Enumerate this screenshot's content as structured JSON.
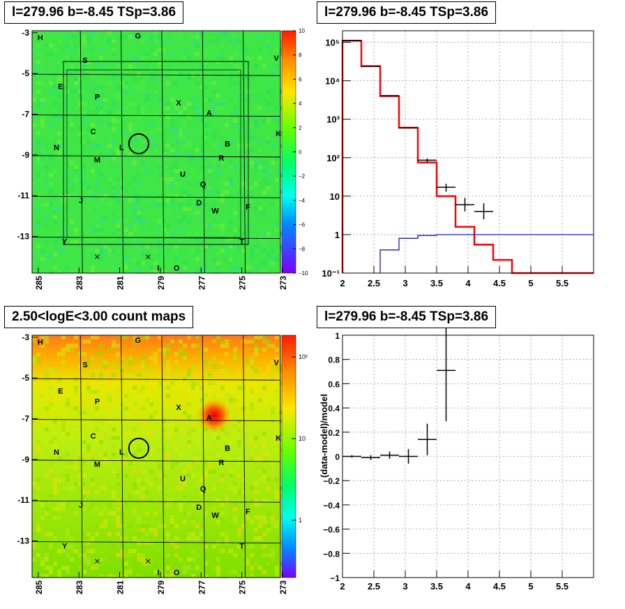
{
  "panels": {
    "tl_title": "l=279.96 b=-8.45 TSp=3.86",
    "tr_title": "l=279.96 b=-8.45 TSp=3.86",
    "bl_title": "2.50<logE<3.00 count maps",
    "br_title": "l=279.96 b=-8.45 TSp=3.86"
  },
  "sky_map": {
    "x_ticks": [
      "285",
      "283",
      "281",
      "279",
      "277",
      "275",
      "273"
    ],
    "y_ticks": [
      "-3",
      "-5",
      "-7",
      "-9",
      "-11",
      "-13"
    ],
    "labels": [
      {
        "t": "H",
        "l": 284.8,
        "b": -3.2
      },
      {
        "t": "G",
        "l": 280.0,
        "b": -3.1
      },
      {
        "t": "S",
        "l": 282.6,
        "b": -4.3
      },
      {
        "t": "V",
        "l": 273.2,
        "b": -4.2
      },
      {
        "t": "E",
        "l": 283.8,
        "b": -5.6
      },
      {
        "t": "P",
        "l": 282.0,
        "b": -6.1
      },
      {
        "t": "X",
        "l": 278.0,
        "b": -6.4
      },
      {
        "t": "A",
        "l": 276.5,
        "b": -6.9
      },
      {
        "t": "C",
        "l": 282.2,
        "b": -7.8
      },
      {
        "t": "K",
        "l": 273.1,
        "b": -7.9
      },
      {
        "t": "B",
        "l": 275.6,
        "b": -8.4
      },
      {
        "t": "N",
        "l": 284.0,
        "b": -8.6
      },
      {
        "t": "L",
        "l": 280.8,
        "b": -8.6
      },
      {
        "t": "R",
        "l": 275.9,
        "b": -9.1
      },
      {
        "t": "M",
        "l": 282.0,
        "b": -9.2
      },
      {
        "t": "U",
        "l": 277.8,
        "b": -9.9
      },
      {
        "t": "Q",
        "l": 276.8,
        "b": -10.4
      },
      {
        "t": "J",
        "l": 282.8,
        "b": -11.2
      },
      {
        "t": "D",
        "l": 277.0,
        "b": -11.3
      },
      {
        "t": "W",
        "l": 276.2,
        "b": -11.7
      },
      {
        "t": "F",
        "l": 274.6,
        "b": -11.5
      },
      {
        "t": "Y",
        "l": 283.6,
        "b": -13.2
      },
      {
        "t": "T",
        "l": 274.9,
        "b": -13.2
      },
      {
        "t": "I",
        "l": 279.0,
        "b": -14.5
      },
      {
        "t": "O",
        "l": 278.1,
        "b": -14.5
      }
    ],
    "crosses": [
      {
        "l": 282.0,
        "b": -14.0
      },
      {
        "l": 279.5,
        "b": -14.0
      }
    ],
    "roi_circle": {
      "l": 279.96,
      "b": -8.45,
      "r_deg": 0.45
    }
  },
  "tl_colorbar": {
    "ticks": [
      "10",
      "8",
      "6",
      "4",
      "2",
      "0",
      "−2",
      "−4",
      "−6",
      "−8",
      "−10"
    ]
  },
  "bl_colorbar": {
    "ticks": [
      "10²",
      "10",
      "1"
    ]
  },
  "chart_data": [
    {
      "type": "line",
      "panel": "top-right spectrum",
      "x_scale": "linear",
      "y_scale": "log",
      "xlim": [
        2,
        6
      ],
      "ylim": [
        0.1,
        200000
      ],
      "x_ticks": [
        "2",
        "2.5",
        "3",
        "3.5",
        "4",
        "4.5",
        "5",
        "5.5"
      ],
      "y_ticks": [
        "10⁻¹",
        "1",
        "10",
        "10²",
        "10³",
        "10⁴",
        "10⁵"
      ],
      "grid": true,
      "series": [
        {
          "style": "step",
          "color": "#ff0000",
          "edges": [
            2.0,
            2.3,
            2.6,
            2.9,
            3.2,
            3.5,
            3.8,
            4.1,
            4.4,
            4.7,
            6.0
          ],
          "values": [
            110000,
            24000,
            4000,
            600,
            75,
            10,
            1.6,
            0.55,
            0.22,
            0.1
          ]
        },
        {
          "style": "step",
          "color": "#0000cc",
          "edges": [
            2.6,
            2.9,
            3.2,
            3.5,
            3.8,
            4.1,
            4.4,
            4.7,
            6.0
          ],
          "values": [
            0.4,
            0.8,
            0.95,
            1.0,
            1.0,
            1.0,
            1.0,
            1.0
          ]
        },
        {
          "style": "errorbar",
          "color": "#000000",
          "points": [
            {
              "x": 2.15,
              "xerr": 0.15,
              "y": 110000,
              "ylo": 108000,
              "yhi": 112000
            },
            {
              "x": 2.45,
              "xerr": 0.15,
              "y": 24000,
              "ylo": 23500,
              "yhi": 24500
            },
            {
              "x": 2.75,
              "xerr": 0.15,
              "y": 4100,
              "ylo": 3950,
              "yhi": 4250
            },
            {
              "x": 3.05,
              "xerr": 0.15,
              "y": 600,
              "ylo": 570,
              "yhi": 630
            },
            {
              "x": 3.35,
              "xerr": 0.15,
              "y": 86,
              "ylo": 77,
              "yhi": 95
            },
            {
              "x": 3.65,
              "xerr": 0.15,
              "y": 17,
              "ylo": 13,
              "yhi": 21
            },
            {
              "x": 3.95,
              "xerr": 0.15,
              "y": 6,
              "ylo": 4,
              "yhi": 9
            },
            {
              "x": 4.25,
              "xerr": 0.15,
              "y": 4,
              "ylo": 2.5,
              "yhi": 6.5
            }
          ]
        }
      ]
    },
    {
      "type": "scatter",
      "panel": "bottom-right residuals",
      "ylabel": "(data-model)/model",
      "xlim": [
        2,
        6
      ],
      "ylim": [
        -1,
        1
      ],
      "x_ticks": [
        "2",
        "2.5",
        "3",
        "3.5",
        "4",
        "4.5",
        "5",
        "5.5"
      ],
      "y_ticks": [
        "−1",
        "−0.8",
        "−0.6",
        "−0.4",
        "−0.2",
        "0",
        "0.2",
        "0.4",
        "0.6",
        "0.8",
        "1"
      ],
      "grid": true,
      "points": [
        {
          "x": 2.15,
          "xerr": 0.15,
          "y": 0.0,
          "yerr": 0.01
        },
        {
          "x": 2.45,
          "xerr": 0.15,
          "y": -0.01,
          "yerr": 0.02
        },
        {
          "x": 2.75,
          "xerr": 0.15,
          "y": 0.01,
          "yerr": 0.03
        },
        {
          "x": 3.05,
          "xerr": 0.15,
          "y": 0.0,
          "yerr": 0.06
        },
        {
          "x": 3.35,
          "xerr": 0.15,
          "y": 0.14,
          "yerr": 0.13
        },
        {
          "x": 3.65,
          "xerr": 0.15,
          "y": 0.71,
          "yerr": 0.42
        }
      ]
    }
  ]
}
